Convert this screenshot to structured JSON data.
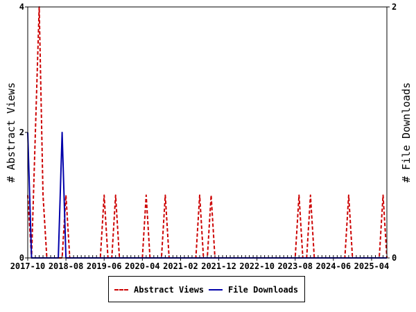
{
  "chart_data": {
    "type": "line",
    "x_tick_labels": [
      "2017-10",
      "2018-08",
      "2019-06",
      "2020-04",
      "2021-02",
      "2021-12",
      "2022-10",
      "2023-08",
      "2024-06",
      "2025-04"
    ],
    "y_left": {
      "label": "# Abstract Views",
      "ticks": [
        "0",
        "2",
        "4"
      ],
      "range": [
        0,
        4
      ]
    },
    "y_right": {
      "label": "# File Downloads",
      "ticks": [
        "0",
        "2"
      ],
      "range": [
        0,
        2
      ]
    },
    "month_count": 95,
    "series": [
      {
        "name": "Abstract Views",
        "axis": "left",
        "color": "#cc0000",
        "dash": true,
        "points": [
          [
            0,
            1
          ],
          [
            1,
            0
          ],
          [
            2,
            2
          ],
          [
            3,
            4
          ],
          [
            4,
            1
          ],
          [
            5,
            0
          ],
          [
            6,
            0
          ],
          [
            7,
            0
          ],
          [
            8,
            0
          ],
          [
            9,
            0
          ],
          [
            10,
            1
          ],
          [
            11,
            0
          ],
          [
            20,
            1
          ],
          [
            23,
            1
          ],
          [
            31,
            1
          ],
          [
            36,
            1
          ],
          [
            45,
            1
          ],
          [
            48,
            1
          ],
          [
            71,
            1
          ],
          [
            74,
            1
          ],
          [
            84,
            1
          ],
          [
            93,
            1
          ],
          [
            94,
            0
          ]
        ]
      },
      {
        "name": "File Downloads",
        "axis": "right",
        "color": "#0000aa",
        "dash": false,
        "points": [
          [
            0,
            1
          ],
          [
            1,
            0
          ],
          [
            2,
            0
          ],
          [
            3,
            0
          ],
          [
            4,
            0
          ],
          [
            5,
            0
          ],
          [
            6,
            0
          ],
          [
            7,
            0
          ],
          [
            8,
            0
          ],
          [
            9,
            1
          ],
          [
            10,
            0
          ],
          [
            94,
            0
          ]
        ]
      }
    ],
    "grid": false,
    "legend_position": "bottom"
  }
}
